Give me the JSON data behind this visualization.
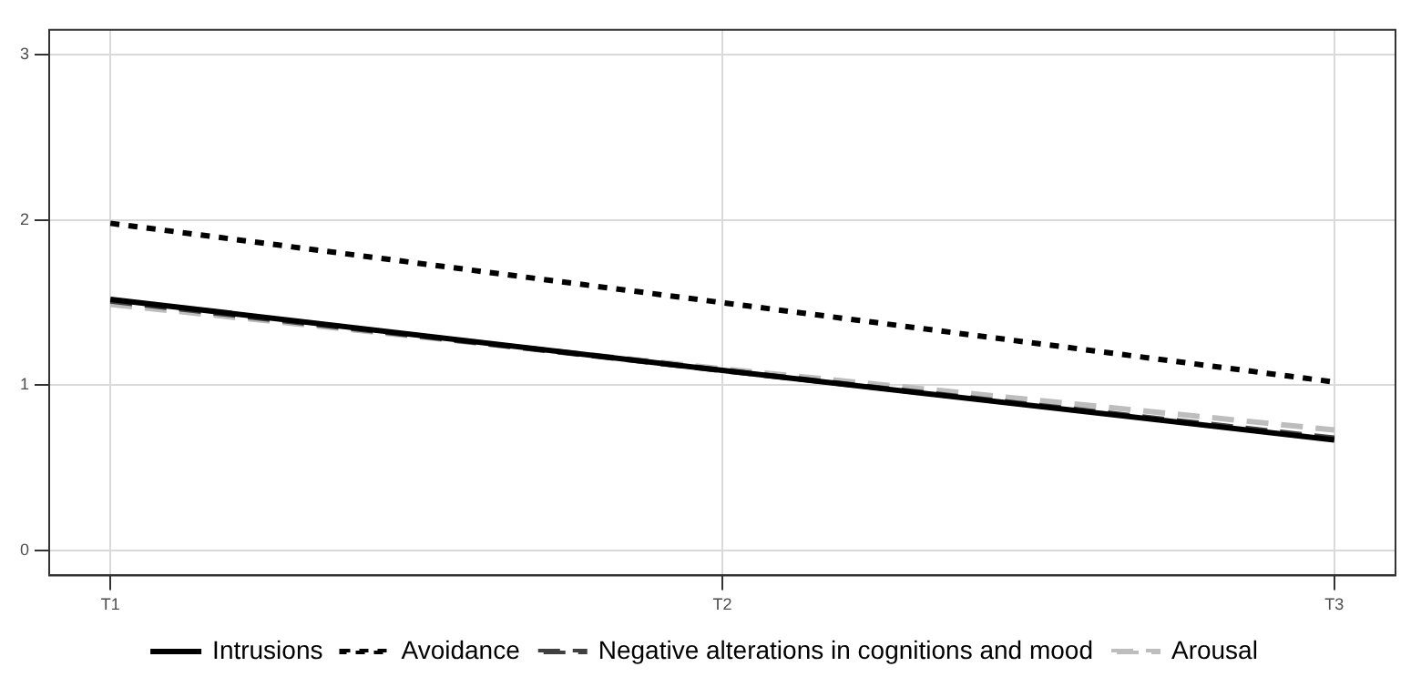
{
  "chart_data": {
    "type": "line",
    "categories": [
      "T1",
      "T2",
      "T3"
    ],
    "ylim": [
      -0.15,
      3.15
    ],
    "yticks": [
      0,
      1,
      2,
      3
    ],
    "grid": true,
    "legend": "bottom",
    "marker": "none",
    "series": [
      {
        "name": "Intrusions",
        "color": "#000000",
        "line_style": "solid",
        "values": [
          1.52,
          1.09,
          0.67
        ]
      },
      {
        "name": "Avoidance",
        "color": "#000000",
        "line_style": "dotted",
        "values": [
          1.98,
          1.5,
          1.02
        ]
      },
      {
        "name": "Negative alterations in cognitions and mood",
        "color": "#404040",
        "line_style": "dashed",
        "values": [
          1.51,
          1.09,
          0.68
        ]
      },
      {
        "name": "Arousal",
        "color": "#bdbdbd",
        "line_style": "dashed",
        "values": [
          1.49,
          1.1,
          0.73
        ]
      }
    ]
  }
}
